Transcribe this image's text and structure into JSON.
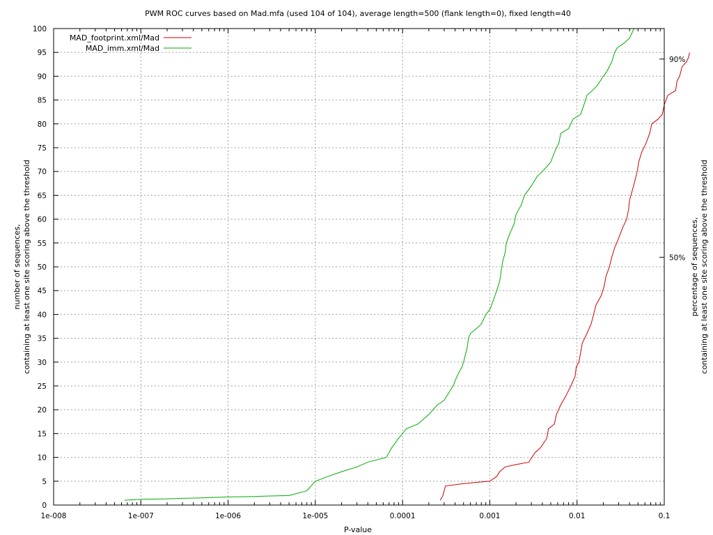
{
  "chart_data": {
    "type": "line",
    "title": "PWM ROC curves based on Mad.mfa (used 104 of 104), average length=500 (flank length=0), fixed length=40",
    "xlabel": "P-value",
    "ylabel": [
      "number of sequences,",
      "containing at least one site scoring above the threshold"
    ],
    "y2label": [
      "percentage of sequences,",
      "containing at least one site scoring above the threshold"
    ],
    "xscale": "log",
    "xlim": [
      1e-08,
      0.1
    ],
    "ylim": [
      0,
      100
    ],
    "grid": true,
    "legend_position": "top-left",
    "x_tick_labels": [
      "1e-008",
      "1e-007",
      "1e-006",
      "1e-005",
      "0.0001",
      "0.001",
      "0.01",
      "0.1"
    ],
    "x_tick_values": [
      1e-08,
      1e-07,
      1e-06,
      1e-05,
      0.0001,
      0.001,
      0.01,
      0.1
    ],
    "y_ticks": [
      0,
      5,
      10,
      15,
      20,
      25,
      30,
      35,
      40,
      45,
      50,
      55,
      60,
      65,
      70,
      75,
      80,
      85,
      90,
      95,
      100
    ],
    "y2_markers": [
      {
        "label": "90%",
        "y": 93.6
      },
      {
        "label": "50%",
        "y": 52
      }
    ],
    "series": [
      {
        "name": "MAD_footprint.xml/Mad",
        "color": "#cc0000",
        "points": [
          [
            0.00027,
            1
          ],
          [
            0.00029,
            2
          ],
          [
            0.0003,
            3
          ],
          [
            0.00031,
            4
          ],
          [
            0.0005,
            4.5
          ],
          [
            0.00075,
            4.8
          ],
          [
            0.001,
            5
          ],
          [
            0.0012,
            6
          ],
          [
            0.0013,
            7
          ],
          [
            0.0015,
            8
          ],
          [
            0.002,
            8.5
          ],
          [
            0.0028,
            9
          ],
          [
            0.0033,
            11
          ],
          [
            0.0038,
            12
          ],
          [
            0.0045,
            14
          ],
          [
            0.0047,
            16
          ],
          [
            0.0055,
            17
          ],
          [
            0.0058,
            19
          ],
          [
            0.0065,
            21
          ],
          [
            0.0075,
            23
          ],
          [
            0.0085,
            25
          ],
          [
            0.0095,
            27
          ],
          [
            0.0098,
            29
          ],
          [
            0.0105,
            30
          ],
          [
            0.011,
            32
          ],
          [
            0.0115,
            34
          ],
          [
            0.013,
            36
          ],
          [
            0.0145,
            38
          ],
          [
            0.0155,
            40
          ],
          [
            0.0165,
            42
          ],
          [
            0.019,
            44
          ],
          [
            0.0205,
            46
          ],
          [
            0.0215,
            48
          ],
          [
            0.0235,
            50
          ],
          [
            0.025,
            52
          ],
          [
            0.027,
            54
          ],
          [
            0.03,
            56
          ],
          [
            0.033,
            58
          ],
          [
            0.037,
            60
          ],
          [
            0.039,
            62
          ],
          [
            0.04,
            64
          ],
          [
            0.043,
            66
          ],
          [
            0.046,
            68
          ],
          [
            0.049,
            70
          ],
          [
            0.051,
            72
          ],
          [
            0.055,
            74
          ],
          [
            0.062,
            76
          ],
          [
            0.068,
            78
          ],
          [
            0.072,
            80
          ],
          [
            0.085,
            81
          ],
          [
            0.095,
            82
          ],
          [
            0.1,
            84
          ],
          [
            0.11,
            86
          ],
          [
            0.135,
            87
          ],
          [
            0.14,
            89
          ],
          [
            0.15,
            90
          ],
          [
            0.16,
            92
          ],
          [
            0.18,
            93
          ],
          [
            0.19,
            94
          ],
          [
            0.195,
            95
          ]
        ]
      },
      {
        "name": "MAD_imm.xml/Mad",
        "color": "#00aa00",
        "points": [
          [
            6.5e-08,
            1
          ],
          [
            1e-07,
            1.2
          ],
          [
            2e-07,
            1.3
          ],
          [
            3e-07,
            1.4
          ],
          [
            5e-07,
            1.5
          ],
          [
            7e-07,
            1.6
          ],
          [
            1e-06,
            1.7
          ],
          [
            2e-06,
            1.8
          ],
          [
            3e-06,
            1.9
          ],
          [
            5e-06,
            2
          ],
          [
            8e-06,
            3
          ],
          [
            1e-05,
            5
          ],
          [
            1.4e-05,
            6
          ],
          [
            2e-05,
            7
          ],
          [
            3e-05,
            8
          ],
          [
            4e-05,
            9
          ],
          [
            6.5e-05,
            10
          ],
          [
            7.5e-05,
            12
          ],
          [
            9e-05,
            14
          ],
          [
            0.0001,
            15
          ],
          [
            0.00011,
            16
          ],
          [
            0.00015,
            17
          ],
          [
            0.0002,
            19
          ],
          [
            0.00025,
            21
          ],
          [
            0.0003,
            22
          ],
          [
            0.00035,
            24
          ],
          [
            0.00038,
            25
          ],
          [
            0.00042,
            27
          ],
          [
            0.00048,
            29
          ],
          [
            0.0005,
            30
          ],
          [
            0.00055,
            33
          ],
          [
            0.00057,
            35
          ],
          [
            0.0006,
            36
          ],
          [
            0.0007,
            37
          ],
          [
            0.0008,
            38
          ],
          [
            0.0009,
            40
          ],
          [
            0.001,
            41
          ],
          [
            0.0011,
            43
          ],
          [
            0.0012,
            45
          ],
          [
            0.0013,
            47
          ],
          [
            0.00135,
            49
          ],
          [
            0.0014,
            51
          ],
          [
            0.0015,
            53
          ],
          [
            0.00155,
            55
          ],
          [
            0.0017,
            57
          ],
          [
            0.0019,
            59
          ],
          [
            0.002,
            61
          ],
          [
            0.0023,
            63
          ],
          [
            0.0025,
            65
          ],
          [
            0.003,
            67
          ],
          [
            0.0035,
            69
          ],
          [
            0.004,
            70
          ],
          [
            0.0045,
            71
          ],
          [
            0.005,
            72
          ],
          [
            0.0055,
            74
          ],
          [
            0.0062,
            76
          ],
          [
            0.0065,
            78
          ],
          [
            0.008,
            79
          ],
          [
            0.0085,
            80
          ],
          [
            0.009,
            81
          ],
          [
            0.011,
            82
          ],
          [
            0.012,
            84
          ],
          [
            0.013,
            86
          ],
          [
            0.015,
            87
          ],
          [
            0.017,
            88
          ],
          [
            0.02,
            90
          ],
          [
            0.022,
            91
          ],
          [
            0.025,
            93
          ],
          [
            0.027,
            95
          ],
          [
            0.029,
            96
          ],
          [
            0.035,
            97
          ],
          [
            0.04,
            98
          ],
          [
            0.045,
            100
          ]
        ]
      }
    ]
  }
}
